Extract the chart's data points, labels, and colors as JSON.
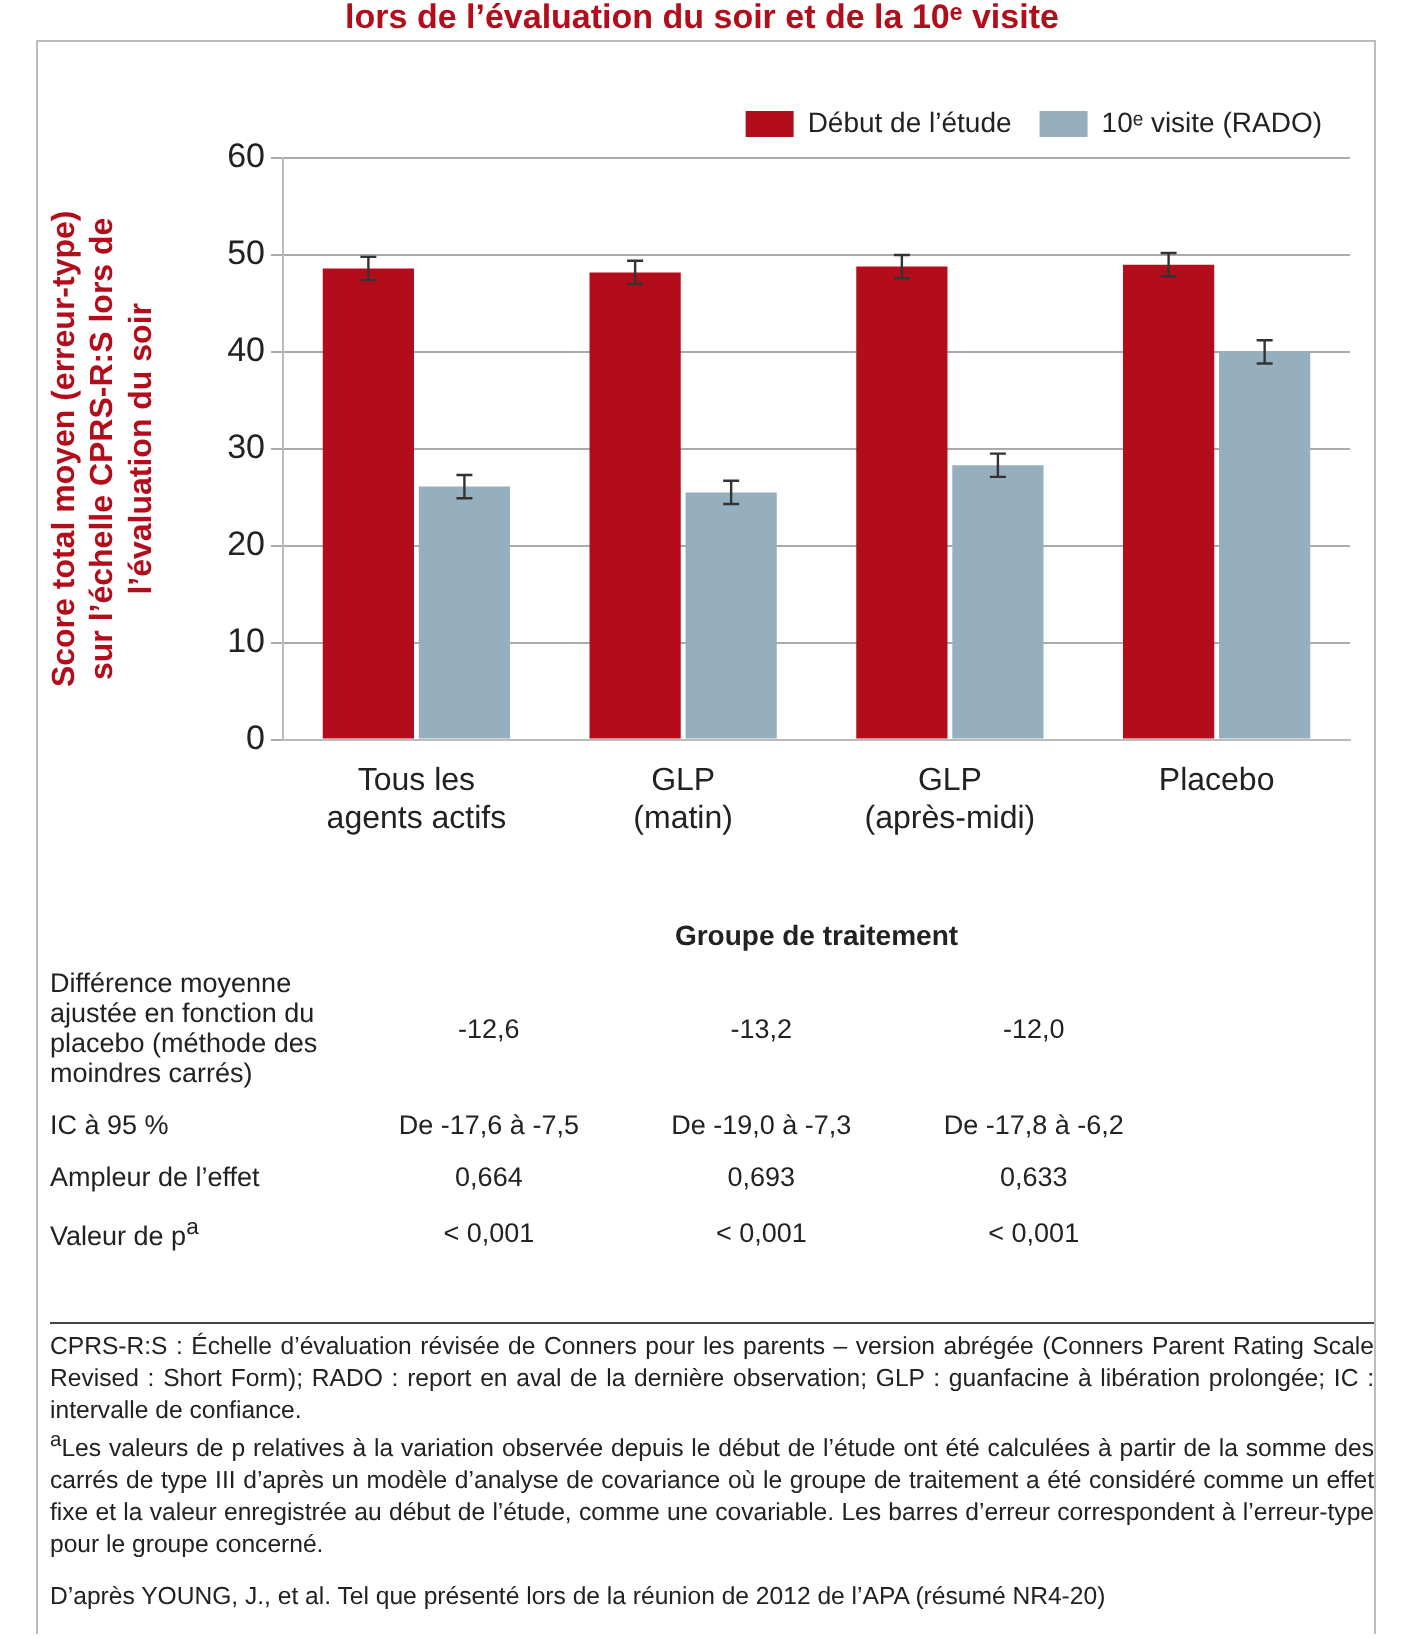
{
  "chart_data": [
    {
      "type": "bar",
      "title": "lors de l’évaluation du soir et de la 10ᵉ visite",
      "ylabel": "Score total moyen (erreur-type) sur l’échelle CPRS-R:S lors de l’évaluation du soir",
      "xlabel": "Groupe de traitement",
      "categories": [
        "Tous les agents actifs",
        "GLP (matin)",
        "GLP (après-midi)",
        "Placebo"
      ],
      "series": [
        {
          "name": "Début de l’étude",
          "color": "#b30d1c",
          "values": [
            48.6,
            48.2,
            48.8,
            49.0
          ],
          "errors": [
            1.2,
            1.2,
            1.2,
            1.2
          ]
        },
        {
          "name": "10ᵉ visite (RADO)",
          "color": "#95afbe",
          "values": [
            26.1,
            25.5,
            28.3,
            40.0
          ],
          "errors": [
            1.2,
            1.2,
            1.2,
            1.2
          ]
        }
      ],
      "ylim": [
        0,
        60
      ],
      "yticks": [
        0,
        10,
        20,
        30,
        40,
        50,
        60
      ],
      "grid": "y",
      "legend": "top right",
      "annotations": [
        "CPRS-R:S : Échelle d’évaluation révisée de Conners pour les parents – version abrégée (Conners Parent Rating Scale Revised : Short Form); RADO : report en aval de la dernière observation; GLP : guanfacine à libération prolongée; IC : intervalle de confiance.",
        "$^{a}$Les valeurs de p relatives à la variation observée depuis le début de l’étude ont été calculées à partir de la somme des carrés de type III d’après un modèle d’analyse de covariance où le groupe de traitement a été considéré comme un effet fixe et la valeur enregistrée au début de l’étude, comme une covariable. Les barres d’erreur correspondent à l’erreur-type pour le groupe concerné.",
        "D’après YOUNG, J., et al. Tel que présenté lors de la réunion de 2012 de l’APA (résumé NR4-20)"
      ]
    },
    {
      "type": "other",
      "annotations": [
        "Différence moyenne ajustée en fonction du placebo (méthode des moindres carrés)",
        "-12,6",
        "-13,2",
        "-12,0",
        "IC à 95 %",
        "De -17,6 à -7,5",
        "De -19,0 à -7,3",
        "De -17,8 à -6,2",
        "Ampleur de l’effet",
        "0,664",
        "0,693",
        "0,633",
        "Valeur de p$^{a}$",
        "< 0,001",
        "< 0,001",
        "< 0,001"
      ]
    }
  ]
}
